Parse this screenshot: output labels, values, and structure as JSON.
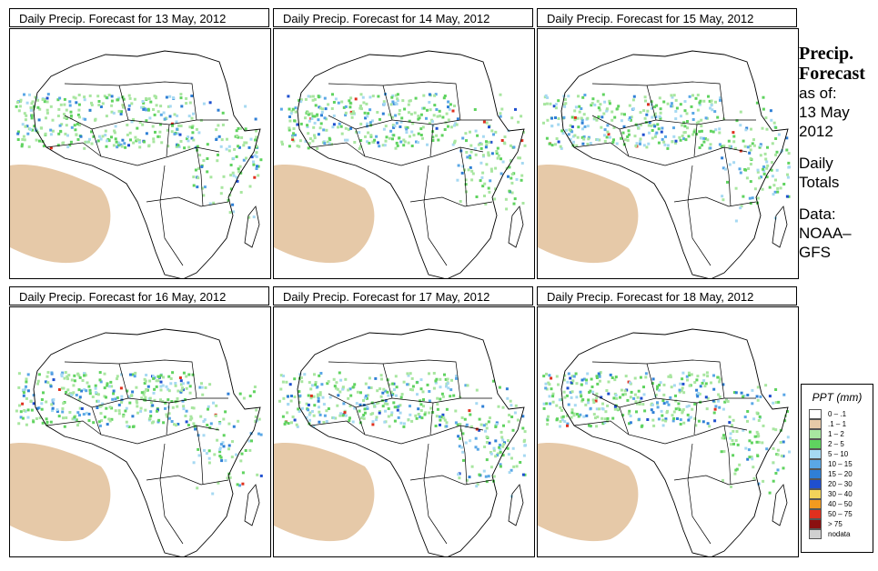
{
  "panels": [
    {
      "title": "Daily Precip. Forecast for  13 May, 2012"
    },
    {
      "title": "Daily Precip. Forecast for  14 May, 2012"
    },
    {
      "title": "Daily Precip. Forecast for  15 May, 2012"
    },
    {
      "title": "Daily Precip. Forecast for  16 May, 2012"
    },
    {
      "title": "Daily Precip. Forecast for  17 May, 2012"
    },
    {
      "title": "Daily Precip. Forecast for  18 May, 2012"
    }
  ],
  "sidebar": {
    "heading1": "Precip.",
    "heading2": "Forecast",
    "asof_label": "as of:",
    "date1": "13 May",
    "date2": "2012",
    "totals1": "Daily",
    "totals2": "Totals",
    "data1": "Data:",
    "data2": "NOAA–",
    "data3": "GFS"
  },
  "legend": {
    "title": "PPT (mm)",
    "items": [
      {
        "label": "0 – .1",
        "color": "#ffffff"
      },
      {
        "label": ".1 – 1",
        "color": "#e6c9a8"
      },
      {
        "label": "1 – 2",
        "color": "#a8e6a0"
      },
      {
        "label": "2 – 5",
        "color": "#5fd35f"
      },
      {
        "label": "5 – 10",
        "color": "#a6d9f2"
      },
      {
        "label": "10 – 15",
        "color": "#5aa7e6"
      },
      {
        "label": "15 – 20",
        "color": "#2f7fd6"
      },
      {
        "label": "20 – 30",
        "color": "#1f4fcf"
      },
      {
        "label": "30 – 40",
        "color": "#f2d35a"
      },
      {
        "label": "40 – 50",
        "color": "#f29a1f"
      },
      {
        "label": "50 – 75",
        "color": "#e0301e"
      },
      {
        "label": "> 75",
        "color": "#8b1010"
      },
      {
        "label": "nodata",
        "color": "#d0d0d0"
      }
    ]
  }
}
